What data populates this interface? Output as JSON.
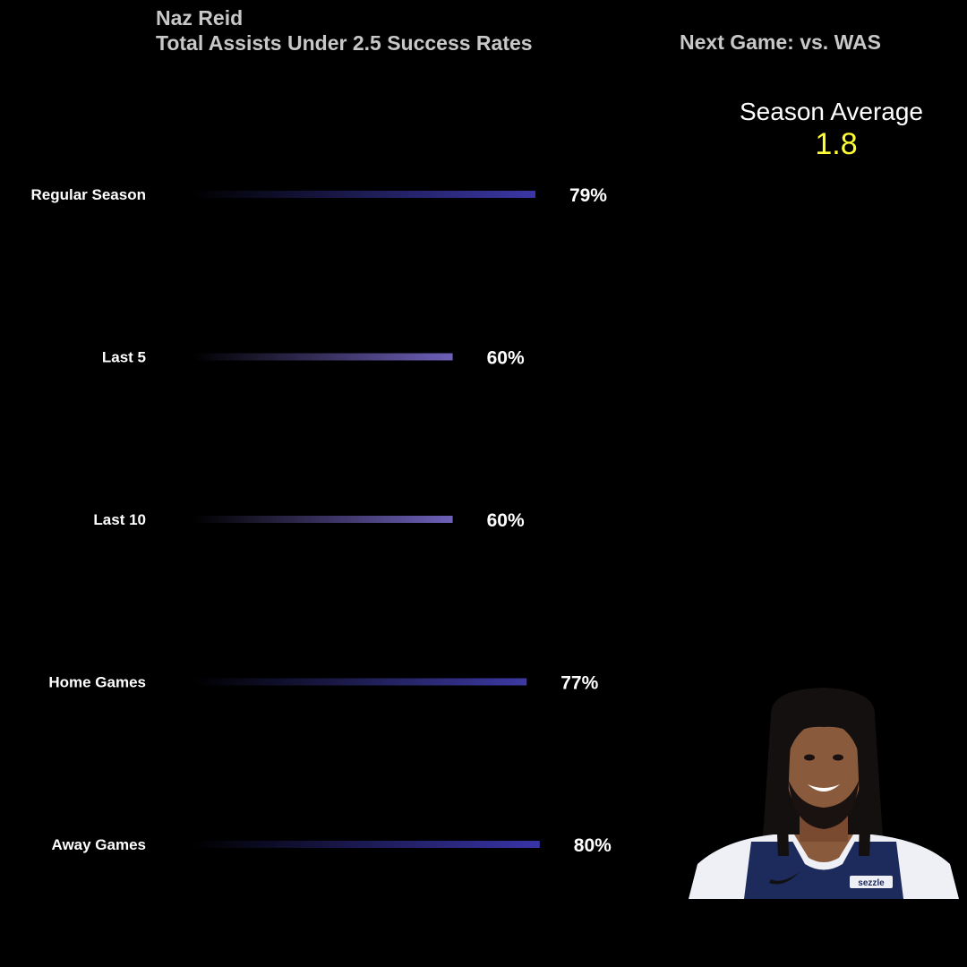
{
  "header": {
    "player_name": "Naz Reid",
    "subtitle": "Total Assists Under 2.5 Success Rates",
    "next_game": "Next Game: vs. WAS"
  },
  "season_average": {
    "label": "Season Average",
    "value": "1.8",
    "value_color": "#ffff33"
  },
  "player_photo": {
    "icon": "player-headshot",
    "jersey_sponsor_text": "sezzle"
  },
  "chart_data": {
    "type": "bar",
    "orientation": "horizontal",
    "categories": [
      "Regular Season",
      "Last 5",
      "Last 10",
      "Home Games",
      "Away Games"
    ],
    "values": [
      79,
      60,
      60,
      77,
      80
    ],
    "value_labels": [
      "79%",
      "60%",
      "60%",
      "77%",
      "80%"
    ],
    "xlim": [
      0,
      100
    ],
    "grid": false,
    "bar_end_colors": [
      "#3a37a6",
      "#6d60b8",
      "#6d60b8",
      "#3c39a2",
      "#3834a8"
    ],
    "bar_start_color": "#000000",
    "background_color": "#000000"
  }
}
